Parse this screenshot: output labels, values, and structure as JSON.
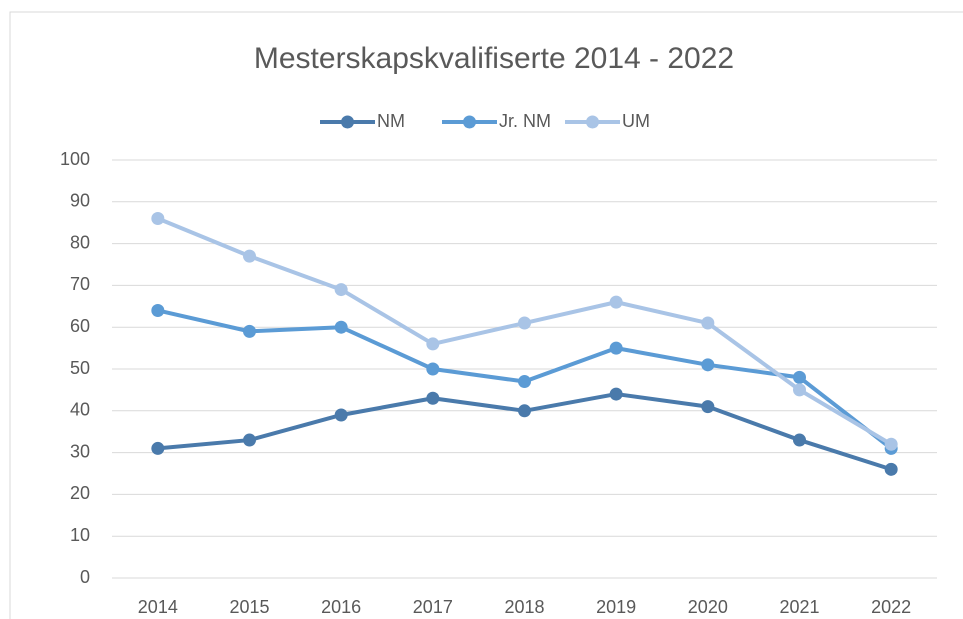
{
  "chart_data": {
    "type": "line",
    "title": "Mesterskapskvalifiserte 2014 - 2022",
    "categories": [
      "2014",
      "2015",
      "2016",
      "2017",
      "2018",
      "2019",
      "2020",
      "2021",
      "2022"
    ],
    "series": [
      {
        "name": "NM",
        "color": "#4a7aab",
        "values": [
          31,
          33,
          39,
          43,
          40,
          44,
          41,
          33,
          26
        ]
      },
      {
        "name": "Jr. NM",
        "color": "#5b9bd5",
        "values": [
          64,
          59,
          60,
          50,
          47,
          55,
          51,
          48,
          31
        ]
      },
      {
        "name": "UM",
        "color": "#a9c4e6",
        "values": [
          86,
          77,
          69,
          56,
          61,
          66,
          61,
          45,
          32
        ]
      }
    ],
    "ylim": [
      0,
      100
    ],
    "yticks": [
      0,
      10,
      20,
      30,
      40,
      50,
      60,
      70,
      80,
      90,
      100
    ],
    "grid": true,
    "legend": "top"
  }
}
